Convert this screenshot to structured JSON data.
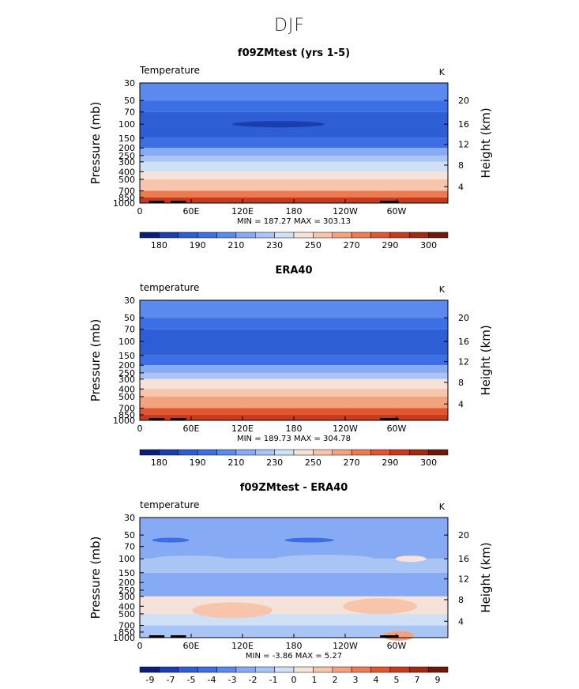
{
  "suptitle": "DJF",
  "palettes": {
    "abs": [
      "#0c1d7a",
      "#1a3eb0",
      "#2e5ed6",
      "#3c6ee6",
      "#5a8aee",
      "#86aaf3",
      "#a9c5f5",
      "#cfe0f7",
      "#f5e2d8",
      "#f6c5ab",
      "#f3a27e",
      "#ec7b52",
      "#e0562e",
      "#c83a1c",
      "#a02b13",
      "#6e1a0a"
    ],
    "diff": [
      "#0c1d7a",
      "#1a3eb0",
      "#2e5ed6",
      "#3c6ee6",
      "#5a8aee",
      "#86aaf3",
      "#a9c5f5",
      "#cfe0f7",
      "#f5e2d8",
      "#f6c5ab",
      "#f3a27e",
      "#ec7b52",
      "#e0562e",
      "#c83a1c",
      "#a02b13",
      "#6e1a0a"
    ]
  },
  "chart_data": [
    {
      "type": "heatmap",
      "title": "f09ZMtest (yrs 1-5)",
      "variable_label": "Temperature",
      "units": "K",
      "ylabel": "Pressure (mb)",
      "ylabel2": "Height (km)",
      "xticks": [
        "0",
        "60E",
        "120E",
        "180",
        "120W",
        "60W"
      ],
      "yticks": [
        "30",
        "50",
        "70",
        "100",
        "150",
        "200",
        "250",
        "300",
        "400",
        "500",
        "700",
        "850",
        "1000"
      ],
      "y2ticks": [
        "20",
        "16",
        "12",
        "8",
        "4"
      ],
      "stats": "MIN = 187.27  MAX = 303.13",
      "min": 187.27,
      "max": 303.13,
      "colorbar_labels": [
        "180",
        "190",
        "210",
        "230",
        "250",
        "270",
        "290",
        "300"
      ],
      "palette": "abs",
      "bands": [
        {
          "level": "30-50",
          "color_index": 4
        },
        {
          "level": "50-70",
          "color_index": 3
        },
        {
          "level": "70-150",
          "color_index": 2
        },
        {
          "level": "150-200",
          "color_index": 3
        },
        {
          "level": "200-250",
          "color_index": 5
        },
        {
          "level": "250-300",
          "color_index": 6
        },
        {
          "level": "300-400",
          "color_index": 7
        },
        {
          "level": "400-500",
          "color_index": 8
        },
        {
          "level": "500-700",
          "color_index": 9
        },
        {
          "level": "700-850",
          "color_index": 11
        },
        {
          "level": "850-1000",
          "color_index": 13
        }
      ]
    },
    {
      "type": "heatmap",
      "title": "ERA40",
      "variable_label": "temperature",
      "units": "K",
      "ylabel": "Pressure (mb)",
      "ylabel2": "Height (km)",
      "xticks": [
        "0",
        "60E",
        "120E",
        "180",
        "120W",
        "60W"
      ],
      "yticks": [
        "30",
        "50",
        "70",
        "100",
        "150",
        "200",
        "250",
        "300",
        "400",
        "500",
        "700",
        "850",
        "1000"
      ],
      "y2ticks": [
        "20",
        "16",
        "12",
        "8",
        "4"
      ],
      "stats": "MIN = 189.73  MAX = 304.78",
      "min": 189.73,
      "max": 304.78,
      "colorbar_labels": [
        "180",
        "190",
        "210",
        "230",
        "250",
        "270",
        "290",
        "300"
      ],
      "palette": "abs",
      "bands": [
        {
          "level": "30-50",
          "color_index": 4
        },
        {
          "level": "50-70",
          "color_index": 3
        },
        {
          "level": "70-150",
          "color_index": 2
        },
        {
          "level": "150-200",
          "color_index": 3
        },
        {
          "level": "200-250",
          "color_index": 5
        },
        {
          "level": "250-300",
          "color_index": 6
        },
        {
          "level": "300-400",
          "color_index": 8
        },
        {
          "level": "400-500",
          "color_index": 9
        },
        {
          "level": "500-700",
          "color_index": 10
        },
        {
          "level": "700-850",
          "color_index": 12
        },
        {
          "level": "850-1000",
          "color_index": 13
        }
      ]
    },
    {
      "type": "heatmap",
      "title": "f09ZMtest - ERA40",
      "variable_label": "temperature",
      "units": "K",
      "ylabel": "Pressure (mb)",
      "ylabel2": "Height (km)",
      "xticks": [
        "0",
        "60E",
        "120E",
        "180",
        "120W",
        "60W"
      ],
      "yticks": [
        "30",
        "50",
        "70",
        "100",
        "150",
        "200",
        "250",
        "300",
        "400",
        "500",
        "700",
        "850",
        "1000"
      ],
      "y2ticks": [
        "20",
        "16",
        "12",
        "8",
        "4"
      ],
      "stats": "MIN =  -3.86  MAX =   5.27",
      "min": -3.86,
      "max": 5.27,
      "colorbar_labels": [
        "-9",
        "-7",
        "-5",
        "-4",
        "-3",
        "-2",
        "-1",
        "0",
        "1",
        "2",
        "3",
        "4",
        "5",
        "7",
        "9"
      ],
      "palette": "diff",
      "bands": [
        {
          "level": "30-100",
          "color_index": 5
        },
        {
          "level": "100-150",
          "color_index": 6
        },
        {
          "level": "150-300",
          "color_index": 5
        },
        {
          "level": "300-500",
          "color_index": 8
        },
        {
          "level": "500-700",
          "color_index": 7
        },
        {
          "level": "700-1000",
          "color_index": 6
        }
      ]
    }
  ]
}
